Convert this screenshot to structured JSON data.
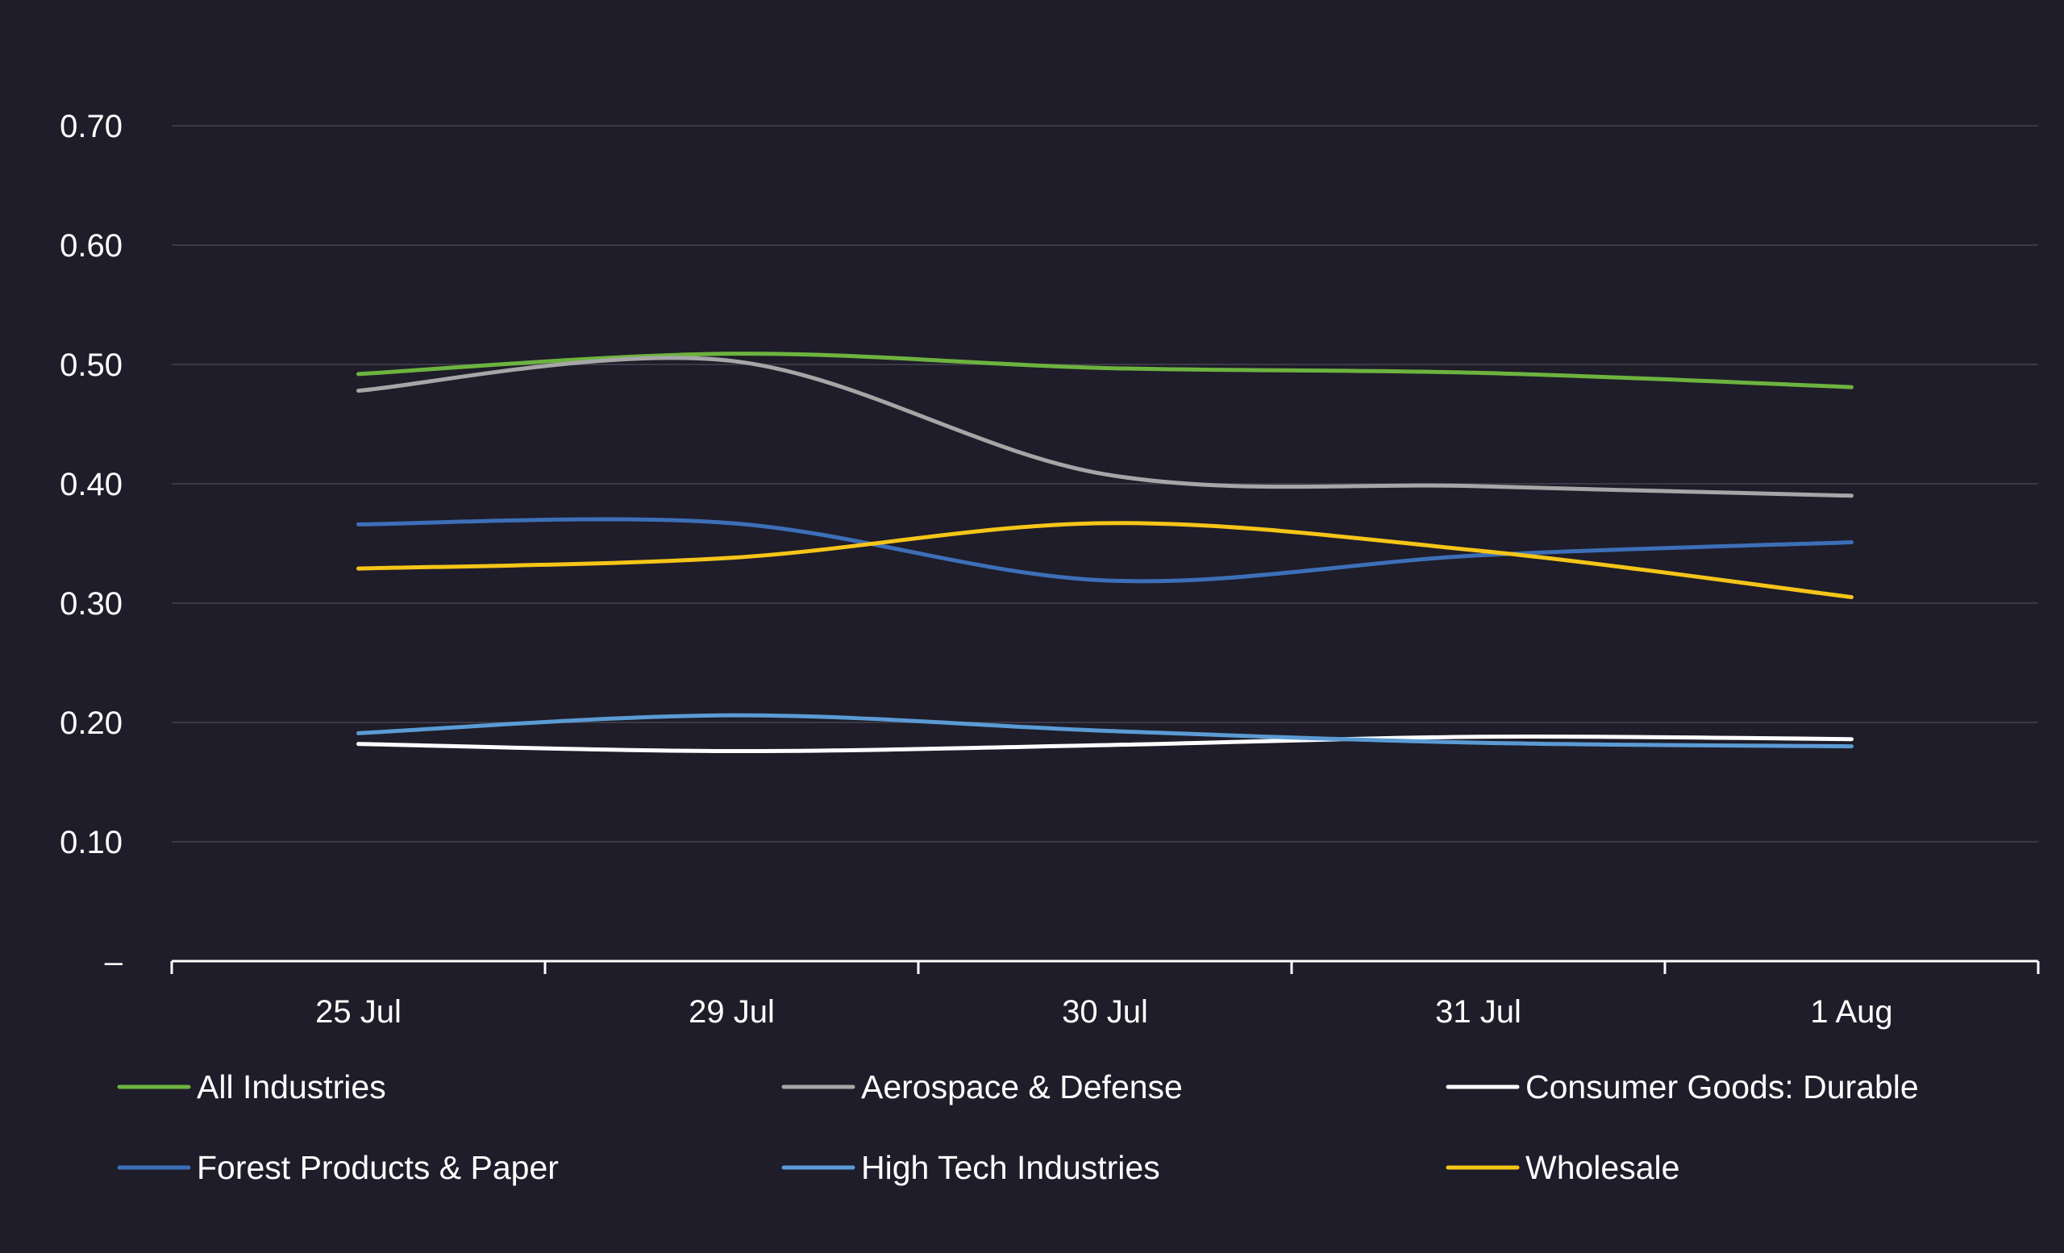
{
  "chart_data": {
    "type": "line",
    "title": "",
    "xlabel": "",
    "ylabel": "",
    "categories": [
      "25 Jul",
      "29 Jul",
      "30 Jul",
      "31 Jul",
      "1 Aug"
    ],
    "ylim": [
      0,
      0.7
    ],
    "yticks": [
      0,
      0.1,
      0.2,
      0.3,
      0.4,
      0.5,
      0.6,
      0.7
    ],
    "ytick_labels": [
      "–",
      "0.10",
      "0.20",
      "0.30",
      "0.40",
      "0.50",
      "0.60",
      "0.70"
    ],
    "grid": true,
    "legend_position": "bottom",
    "series": [
      {
        "name": "All Industries",
        "color": "#6db33f",
        "values": [
          0.492,
          0.509,
          0.497,
          0.493,
          0.481
        ]
      },
      {
        "name": "Aerospace & Defense",
        "color": "#a6a6a6",
        "values": [
          0.478,
          0.503,
          0.408,
          0.398,
          0.39
        ]
      },
      {
        "name": "Consumer Goods: Durable",
        "color": "#ffffff",
        "values": [
          0.182,
          0.176,
          0.181,
          0.188,
          0.186
        ]
      },
      {
        "name": "Forest Products & Paper",
        "color": "#3d6fb8",
        "values": [
          0.366,
          0.367,
          0.319,
          0.34,
          0.351
        ]
      },
      {
        "name": "High Tech Industries",
        "color": "#5b9bd5",
        "values": [
          0.191,
          0.206,
          0.193,
          0.183,
          0.18
        ]
      },
      {
        "name": "Wholesale",
        "color": "#f5c518",
        "values": [
          0.329,
          0.338,
          0.367,
          0.344,
          0.305
        ]
      }
    ]
  }
}
